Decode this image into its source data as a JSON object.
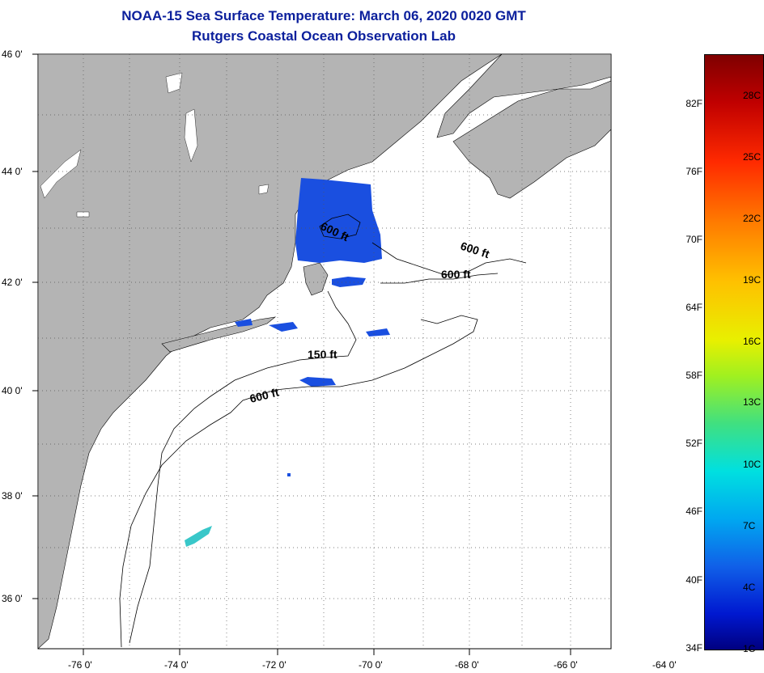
{
  "header": {
    "title_line1": "NOAA-15 Sea Surface Temperature:  March 06, 2020 0020 GMT",
    "title_line2": "Rutgers Coastal Ocean Observation Lab"
  },
  "map": {
    "lat_labels": [
      "46 0'",
      "44 0'",
      "42 0'",
      "40 0'",
      "38 0'",
      "36 0'"
    ],
    "lon_labels": [
      "-76 0'",
      "-74 0'",
      "-72 0'",
      "-70 0'",
      "-68 0'",
      "-66 0'",
      "-64 0'"
    ],
    "contour_labels": [
      "600 ft",
      "600 ft",
      "600 ft",
      "150 ft",
      "600 ft"
    ],
    "colors": {
      "land": "#b4b4b4",
      "ocean": "#ffffff",
      "sst_patch": "#1a4fe0",
      "grid": "#000000"
    }
  },
  "colorbar": {
    "fahrenheit": [
      "82F",
      "76F",
      "70F",
      "64F",
      "58F",
      "52F",
      "46F",
      "40F",
      "34F"
    ],
    "celsius": [
      "28C",
      "25C",
      "22C",
      "19C",
      "16C",
      "13C",
      "10C",
      "7C",
      "4C",
      "1C"
    ]
  }
}
